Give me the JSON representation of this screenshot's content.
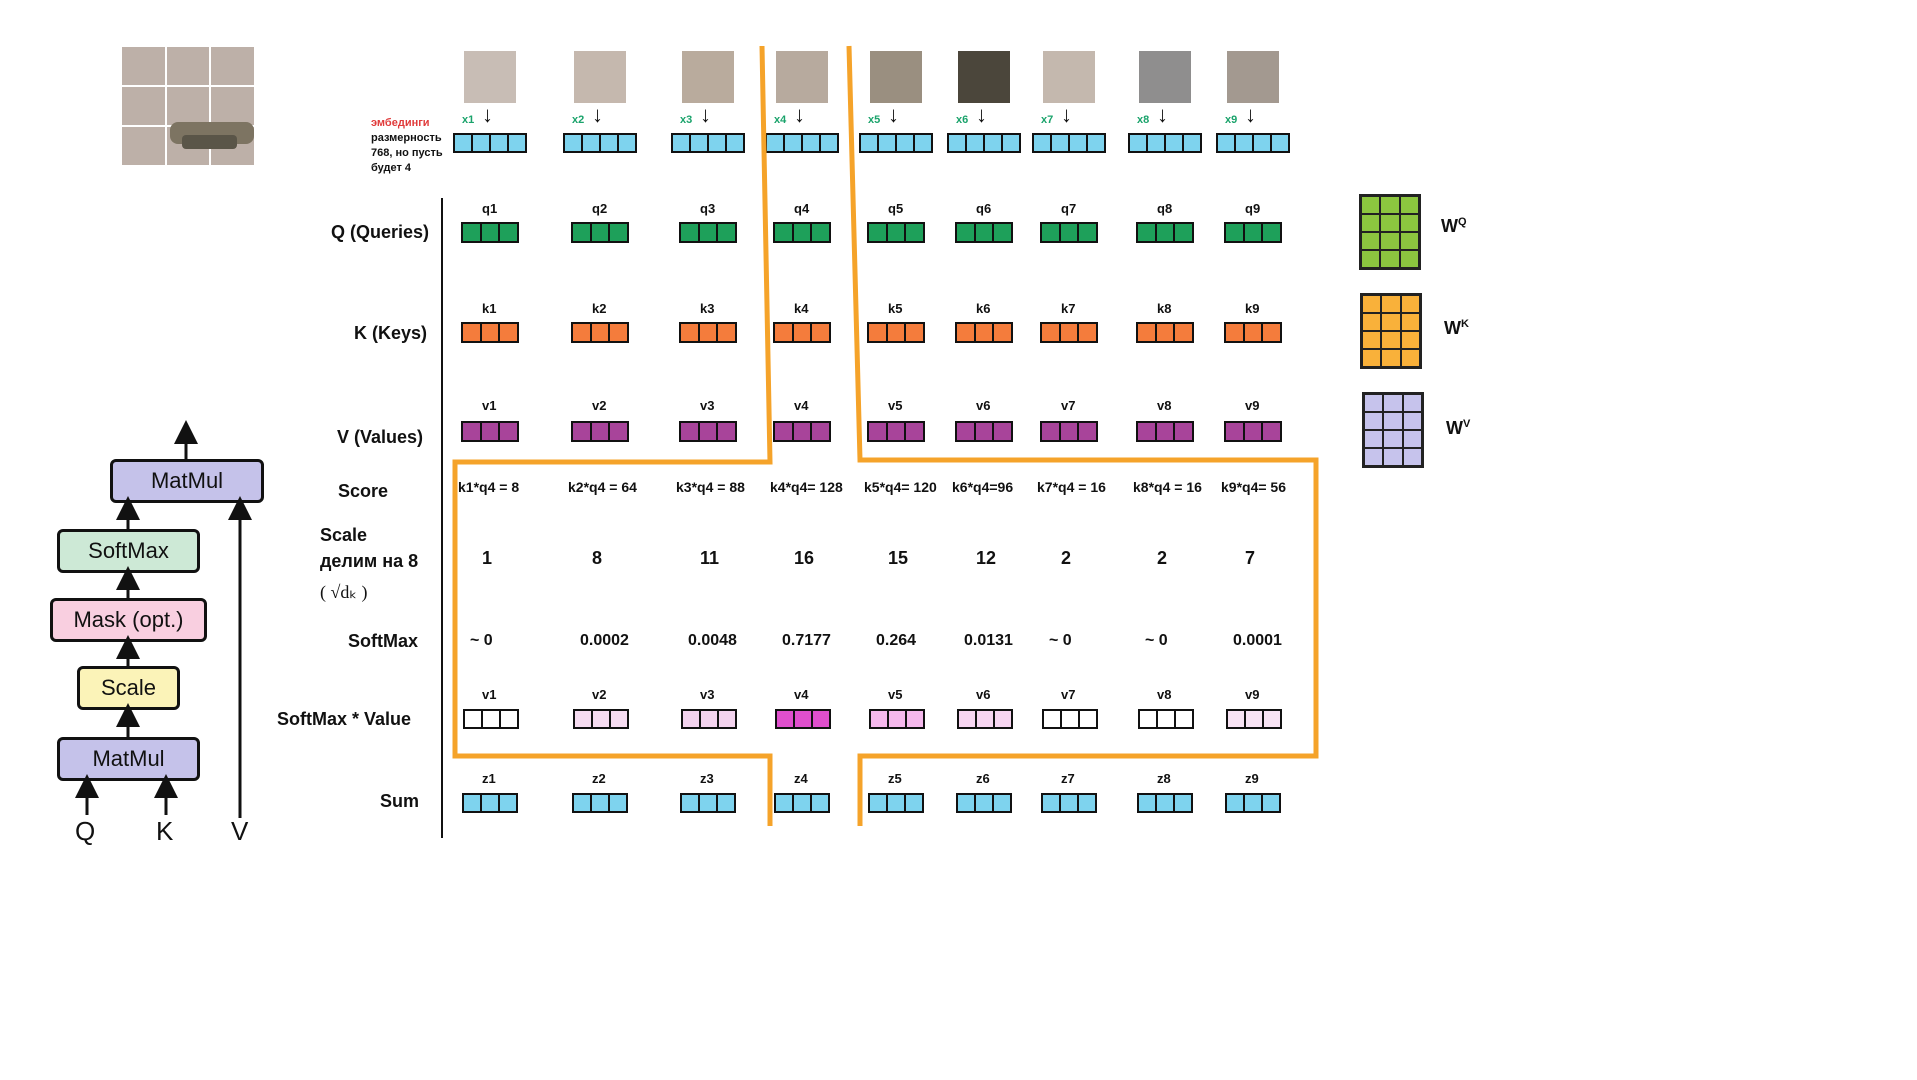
{
  "embedding_note": {
    "title": "эмбединги",
    "line1": "размерность",
    "line2": "768, но пусть",
    "line3": "будет 4"
  },
  "x_labels": [
    "x1",
    "x2",
    "x3",
    "x4",
    "x5",
    "x6",
    "x7",
    "x8",
    "x9"
  ],
  "rows": {
    "queries": {
      "label": "Q (Queries)",
      "items": [
        "q1",
        "q2",
        "q3",
        "q4",
        "q5",
        "q6",
        "q7",
        "q8",
        "q9"
      ],
      "color": "#1ea05a"
    },
    "keys": {
      "label": "K (Keys)",
      "items": [
        "k1",
        "k2",
        "k3",
        "k4",
        "k5",
        "k6",
        "k7",
        "k8",
        "k9"
      ],
      "color": "#f47c3c"
    },
    "values": {
      "label": "V (Values)",
      "items": [
        "v1",
        "v2",
        "v3",
        "v4",
        "v5",
        "v6",
        "v7",
        "v8",
        "v9"
      ],
      "color": "#a8449a"
    },
    "score": {
      "label": "Score",
      "items": [
        "k1*q4 = 8",
        "k2*q4 = 64",
        "k3*q4 = 88",
        "k4*q4= 128",
        "k5*q4= 120",
        "k6*q4=96",
        "k7*q4 = 16",
        "k8*q4 = 16",
        "k9*q4= 56"
      ]
    },
    "scale": {
      "label1": "Scale",
      "label2": "делим на 8",
      "label3": "( √dₖ )",
      "items": [
        "1",
        "8",
        "11",
        "16",
        "15",
        "12",
        "2",
        "2",
        "7"
      ]
    },
    "softmax": {
      "label": "SoftMax",
      "items": [
        "~ 0",
        "0.0002",
        "0.0048",
        "0.7177",
        "0.264",
        "0.0131",
        "~ 0",
        "~ 0",
        "0.0001"
      ]
    },
    "softmax_value": {
      "label": "SoftMax * Value",
      "items": [
        "v1",
        "v2",
        "v3",
        "v4",
        "v5",
        "v6",
        "v7",
        "v8",
        "v9"
      ]
    },
    "sum": {
      "label": "Sum",
      "items": [
        "z1",
        "z2",
        "z3",
        "z4",
        "z5",
        "z6",
        "z7",
        "z8",
        "z9"
      ]
    }
  },
  "weights": [
    {
      "label": "W",
      "sup": "Q",
      "color": "#8cc63f"
    },
    {
      "label": "W",
      "sup": "K",
      "color": "#f9b13a"
    },
    {
      "label": "W",
      "sup": "V",
      "color": "#c6c3ec"
    }
  ],
  "flow": {
    "blocks": [
      "MatMul",
      "SoftMax",
      "Mask (opt.)",
      "Scale",
      "MatMul"
    ],
    "inputs": [
      "Q",
      "K",
      "V"
    ]
  },
  "colors": {
    "embedding": "#7ed3ee",
    "highlight": "#f5a32a"
  }
}
